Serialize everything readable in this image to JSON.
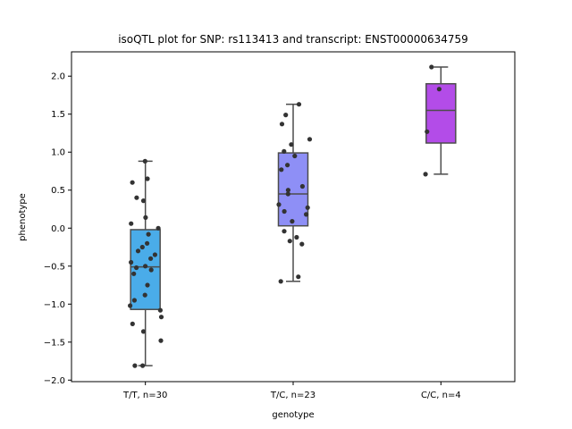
{
  "chart_data": {
    "type": "box",
    "title": "isoQTL plot for SNP: rs113413 and transcript: ENST00000634759",
    "xlabel": "genotype",
    "ylabel": "phenotype",
    "ylim": [
      -2.02,
      2.32
    ],
    "y_ticks": [
      -2.0,
      -1.5,
      -1.0,
      -0.5,
      0.0,
      0.5,
      1.0,
      1.5,
      2.0
    ],
    "y_tick_labels": [
      "−2.0",
      "−1.5",
      "−1.0",
      "−0.5",
      "0.0",
      "0.5",
      "1.0",
      "1.5",
      "2.0"
    ],
    "categories": [
      "T/T, n=30",
      "T/C, n=23",
      "C/C, n=4"
    ],
    "grid": false,
    "boxes": [
      {
        "category": "T/T, n=30",
        "color": "#4aace9",
        "whisker_low": -1.81,
        "q1": -1.07,
        "median": -0.51,
        "q3": -0.02,
        "whisker_high": 0.88,
        "points": [
          0.88,
          0.65,
          0.6,
          0.4,
          0.36,
          0.14,
          0.06,
          0.0,
          -0.08,
          -0.25,
          -0.3,
          -0.35,
          -0.4,
          -0.45,
          -0.5,
          -0.52,
          -0.55,
          -0.6,
          -0.75,
          -0.88,
          -0.95,
          -1.02,
          -1.08,
          -1.17,
          -1.26,
          -1.36,
          -1.48,
          -1.81,
          -1.81,
          -0.2
        ]
      },
      {
        "category": "T/C, n=23",
        "color": "#8e8ff6",
        "whisker_low": -0.7,
        "q1": 0.03,
        "median": 0.45,
        "q3": 0.99,
        "whisker_high": 1.63,
        "points": [
          1.63,
          1.49,
          1.37,
          1.17,
          1.1,
          1.01,
          0.95,
          0.83,
          0.77,
          0.55,
          0.5,
          0.45,
          0.31,
          0.27,
          0.22,
          0.18,
          0.09,
          -0.04,
          -0.12,
          -0.17,
          -0.21,
          -0.64,
          -0.7
        ]
      },
      {
        "category": "C/C, n=4",
        "color": "#b34ce8",
        "whisker_low": 0.71,
        "q1": 1.12,
        "median": 1.55,
        "q3": 1.9,
        "whisker_high": 2.12,
        "points": [
          2.12,
          1.83,
          1.27,
          0.71
        ]
      }
    ]
  }
}
